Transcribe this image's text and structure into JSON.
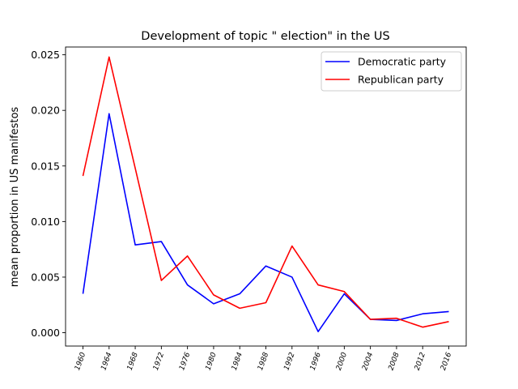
{
  "chart_data": {
    "type": "line",
    "title": "Development of topic \" election\" in the US",
    "xlabel": "",
    "ylabel": "mean proportion in US manifestos",
    "x": [
      "1960",
      "1964",
      "1968",
      "1972",
      "1976",
      "1980",
      "1984",
      "1988",
      "1992",
      "1996",
      "2000",
      "2004",
      "2008",
      "2012",
      "2016"
    ],
    "ylim": [
      -0.0012,
      0.0257
    ],
    "yticks": [
      0.0,
      0.005,
      0.01,
      0.015,
      0.02,
      0.025
    ],
    "ytick_labels": [
      "0.000",
      "0.005",
      "0.010",
      "0.015",
      "0.020",
      "0.025"
    ],
    "grid": false,
    "legend_position": "top-right",
    "series": [
      {
        "name": "Democratic party",
        "color": "#0000ff",
        "values": [
          0.0035,
          0.0197,
          0.0079,
          0.0082,
          0.0043,
          0.0026,
          0.0035,
          0.006,
          0.005,
          0.0001,
          0.0035,
          0.0012,
          0.0011,
          0.0017,
          0.0019
        ]
      },
      {
        "name": "Republican party",
        "color": "#ff0000",
        "values": [
          0.0141,
          0.0248,
          0.0148,
          0.0047,
          0.0069,
          0.0034,
          0.0022,
          0.0027,
          0.0078,
          0.0043,
          0.0037,
          0.0012,
          0.0013,
          0.0005,
          0.001
        ]
      }
    ]
  }
}
